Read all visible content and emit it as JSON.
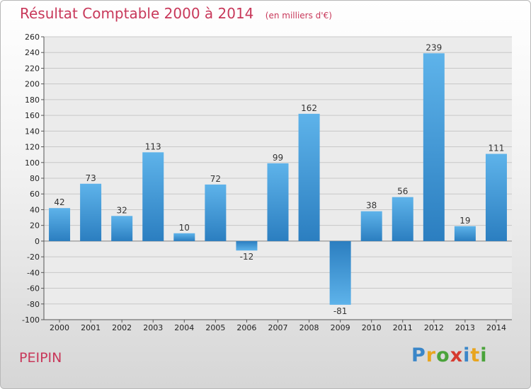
{
  "header": {
    "title": "Résultat Comptable 2000 à 2014",
    "subtitle": "(en milliers d'€)"
  },
  "footer": {
    "commune": "PEIPIN",
    "brand": "Proxiti"
  },
  "colors": {
    "accent": "#c8385a",
    "bar_top": "#5eb3ea",
    "bar_bottom": "#2b7ec0"
  },
  "chart_data": {
    "type": "bar",
    "title": "Résultat Comptable 2000 à 2014",
    "subtitle": "(en milliers d'€)",
    "xlabel": "",
    "ylabel": "",
    "categories": [
      "2000",
      "2001",
      "2002",
      "2003",
      "2004",
      "2005",
      "2006",
      "2007",
      "2008",
      "2009",
      "2010",
      "2011",
      "2012",
      "2013",
      "2014"
    ],
    "values": [
      42,
      73,
      32,
      113,
      10,
      72,
      -12,
      99,
      162,
      -81,
      38,
      56,
      239,
      19,
      111
    ],
    "ylim": [
      -100,
      260
    ],
    "yticks": [
      -100,
      -80,
      -60,
      -40,
      -20,
      0,
      20,
      40,
      60,
      80,
      100,
      120,
      140,
      160,
      180,
      200,
      220,
      240,
      260
    ],
    "grid": true
  }
}
